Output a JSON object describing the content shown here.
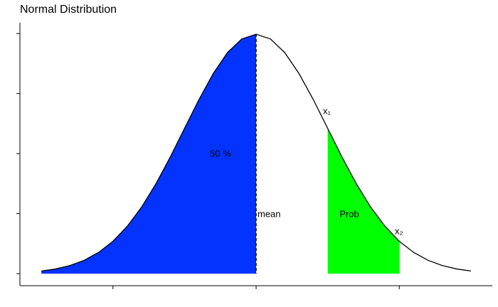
{
  "chart_data": {
    "type": "area",
    "title": "Normal Distribution",
    "x": [
      -3,
      -2.8,
      -2.6,
      -2.4,
      -2.2,
      -2,
      -1.8,
      -1.6,
      -1.4,
      -1.2,
      -1,
      -0.8,
      -0.6,
      -0.4,
      -0.2,
      0,
      0.2,
      0.4,
      0.6,
      0.8,
      1,
      1.2,
      1.4,
      1.6,
      1.8,
      2,
      2.2,
      2.4,
      2.6,
      2.8,
      3
    ],
    "values": [
      0.0044,
      0.0079,
      0.0136,
      0.0224,
      0.0355,
      0.054,
      0.079,
      0.1109,
      0.1497,
      0.1942,
      0.242,
      0.2897,
      0.3332,
      0.3683,
      0.391,
      0.3989,
      0.391,
      0.3683,
      0.3332,
      0.2897,
      0.242,
      0.1942,
      0.1497,
      0.1109,
      0.079,
      0.054,
      0.0355,
      0.0224,
      0.0136,
      0.0079,
      0.0044
    ],
    "color": "#000000",
    "shaded": [
      {
        "from": -3,
        "to": 0,
        "color": "#0433ff"
      },
      {
        "from": 1,
        "to": 2,
        "color": "#00ff00"
      }
    ],
    "annotations": [
      "50 %",
      "mean",
      "Prob",
      "x₁",
      "x₂"
    ],
    "xlim": [
      -3.3,
      3.3
    ],
    "ylim": [
      -0.02,
      0.418
    ],
    "xticks": [
      -2,
      0,
      2
    ],
    "yticks": [
      0,
      0.1,
      0.2,
      0.3,
      0.4
    ]
  }
}
